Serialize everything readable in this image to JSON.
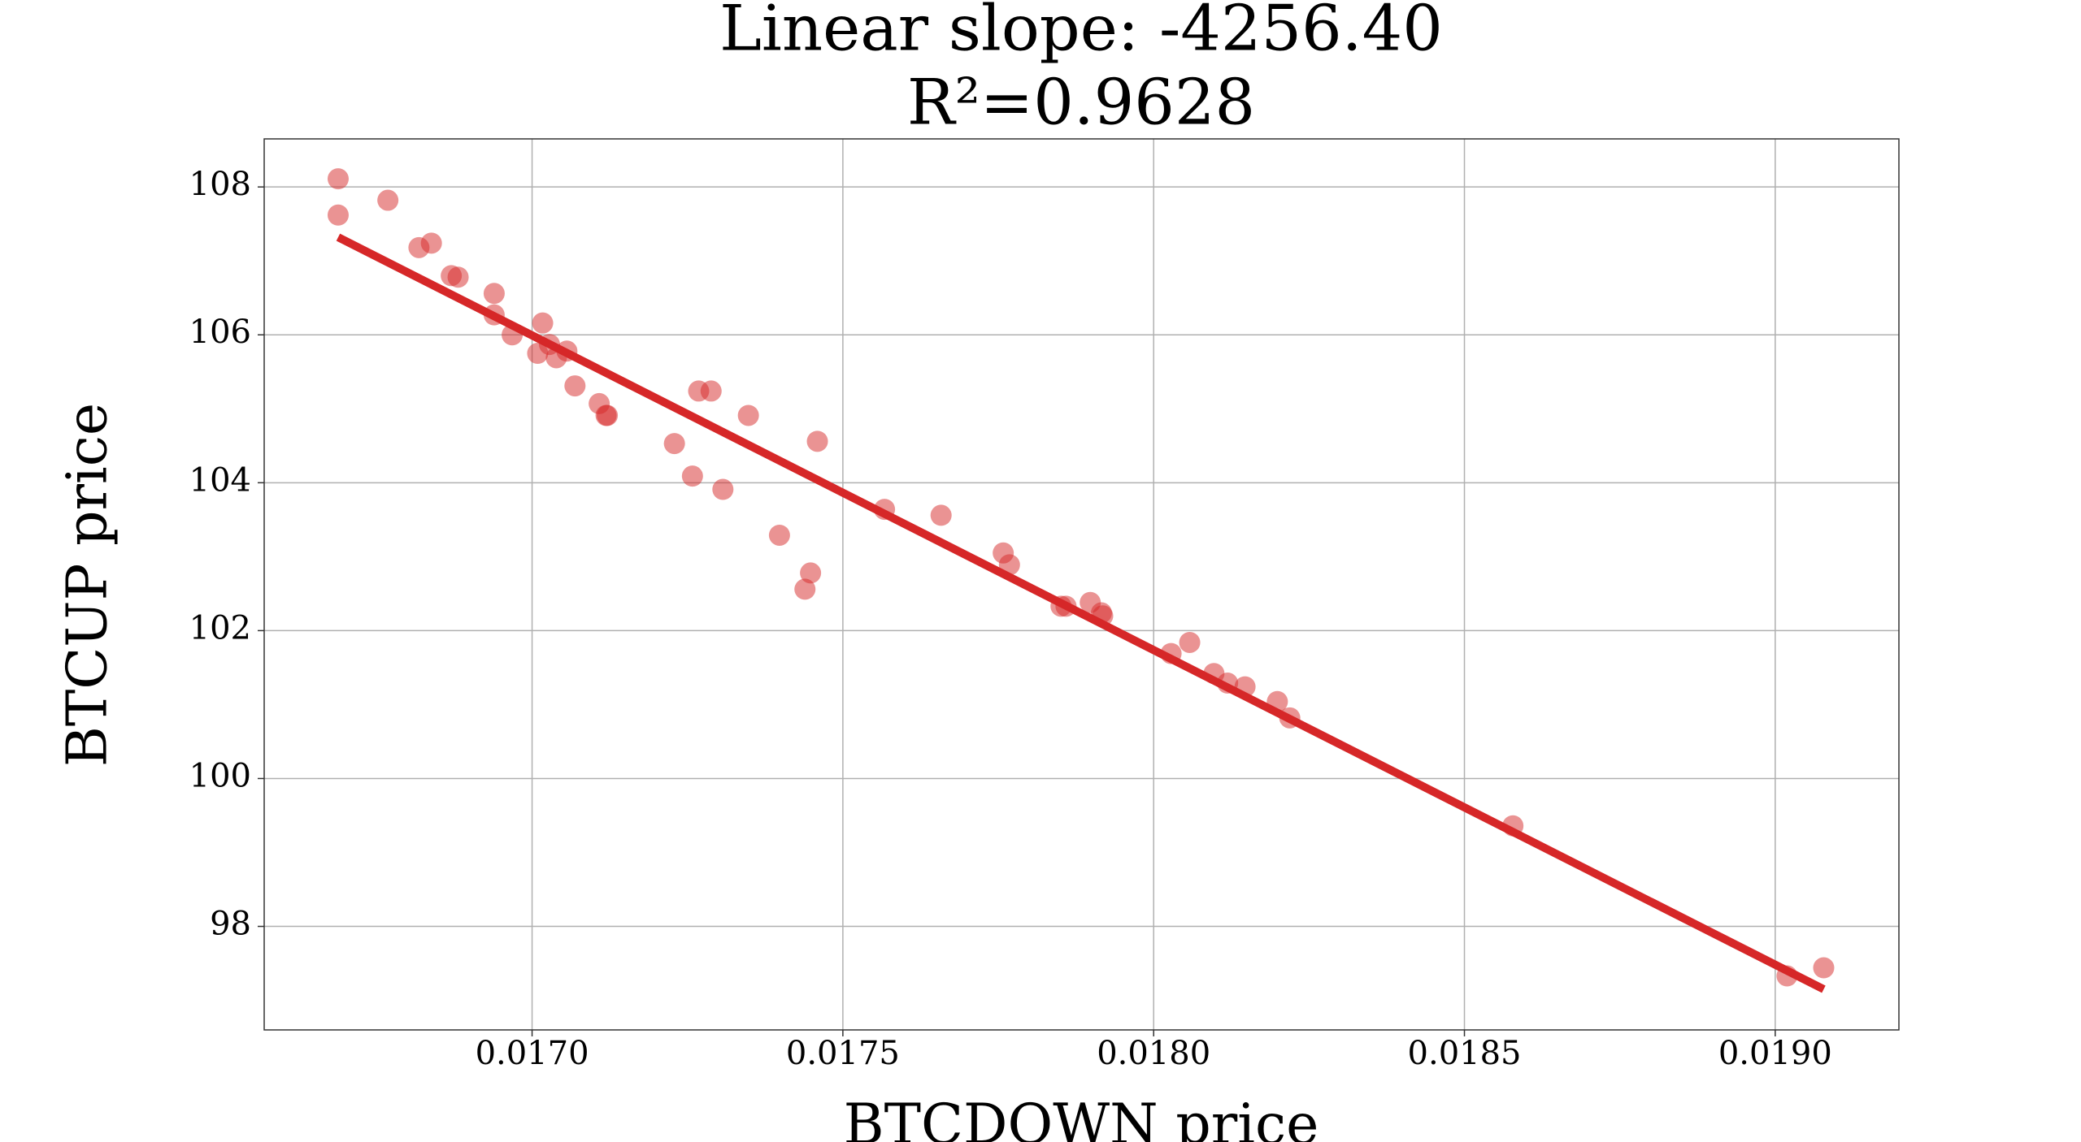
{
  "chart_data": {
    "type": "scatter",
    "title": "Linear slope: -4256.40",
    "subtitle": "R²=0.9628",
    "x_label": "BTCDOWN price",
    "y_label": "BTCUP price",
    "xlim": [
      0.016569,
      0.019199
    ],
    "ylim": [
      96.6,
      108.65
    ],
    "xticks": [
      {
        "value": 0.017,
        "label": "0.0170"
      },
      {
        "value": 0.0175,
        "label": "0.0175"
      },
      {
        "value": 0.018,
        "label": "0.0180"
      },
      {
        "value": 0.0185,
        "label": "0.0185"
      },
      {
        "value": 0.019,
        "label": "0.0190"
      }
    ],
    "yticks": [
      98,
      100,
      102,
      104,
      106,
      108
    ],
    "grid": true,
    "color": "#d62728",
    "x": [
      0.016688,
      0.016688,
      0.016768,
      0.016818,
      0.016838,
      0.01687,
      0.016881,
      0.016939,
      0.016939,
      0.016968,
      0.017017,
      0.017009,
      0.017028,
      0.017039,
      0.017056,
      0.017069,
      0.017108,
      0.017119,
      0.017121,
      0.017229,
      0.017268,
      0.017288,
      0.017258,
      0.017307,
      0.017348,
      0.017398,
      0.017459,
      0.017448,
      0.017439,
      0.017567,
      0.017658,
      0.017758,
      0.017768,
      0.017851,
      0.017859,
      0.017898,
      0.017916,
      0.017918,
      0.018028,
      0.018058,
      0.018097,
      0.018119,
      0.018147,
      0.018199,
      0.018219,
      0.018578,
      0.019019,
      0.019078
    ],
    "values": [
      108.11,
      107.62,
      107.82,
      107.18,
      107.24,
      106.8,
      106.78,
      106.56,
      106.27,
      106.0,
      106.16,
      105.75,
      105.87,
      105.69,
      105.78,
      105.31,
      105.07,
      104.91,
      104.91,
      104.53,
      105.24,
      105.24,
      104.09,
      103.91,
      104.91,
      103.29,
      104.56,
      102.78,
      102.56,
      103.64,
      103.56,
      103.05,
      102.89,
      102.33,
      102.33,
      102.38,
      102.24,
      102.2,
      101.69,
      101.84,
      101.42,
      101.29,
      101.24,
      101.04,
      100.82,
      99.36,
      97.33,
      97.44
    ],
    "fit_line": {
      "color": "#d62728",
      "x": [
        0.016688,
        0.019078
      ],
      "values": [
        107.32,
        97.15
      ]
    }
  }
}
